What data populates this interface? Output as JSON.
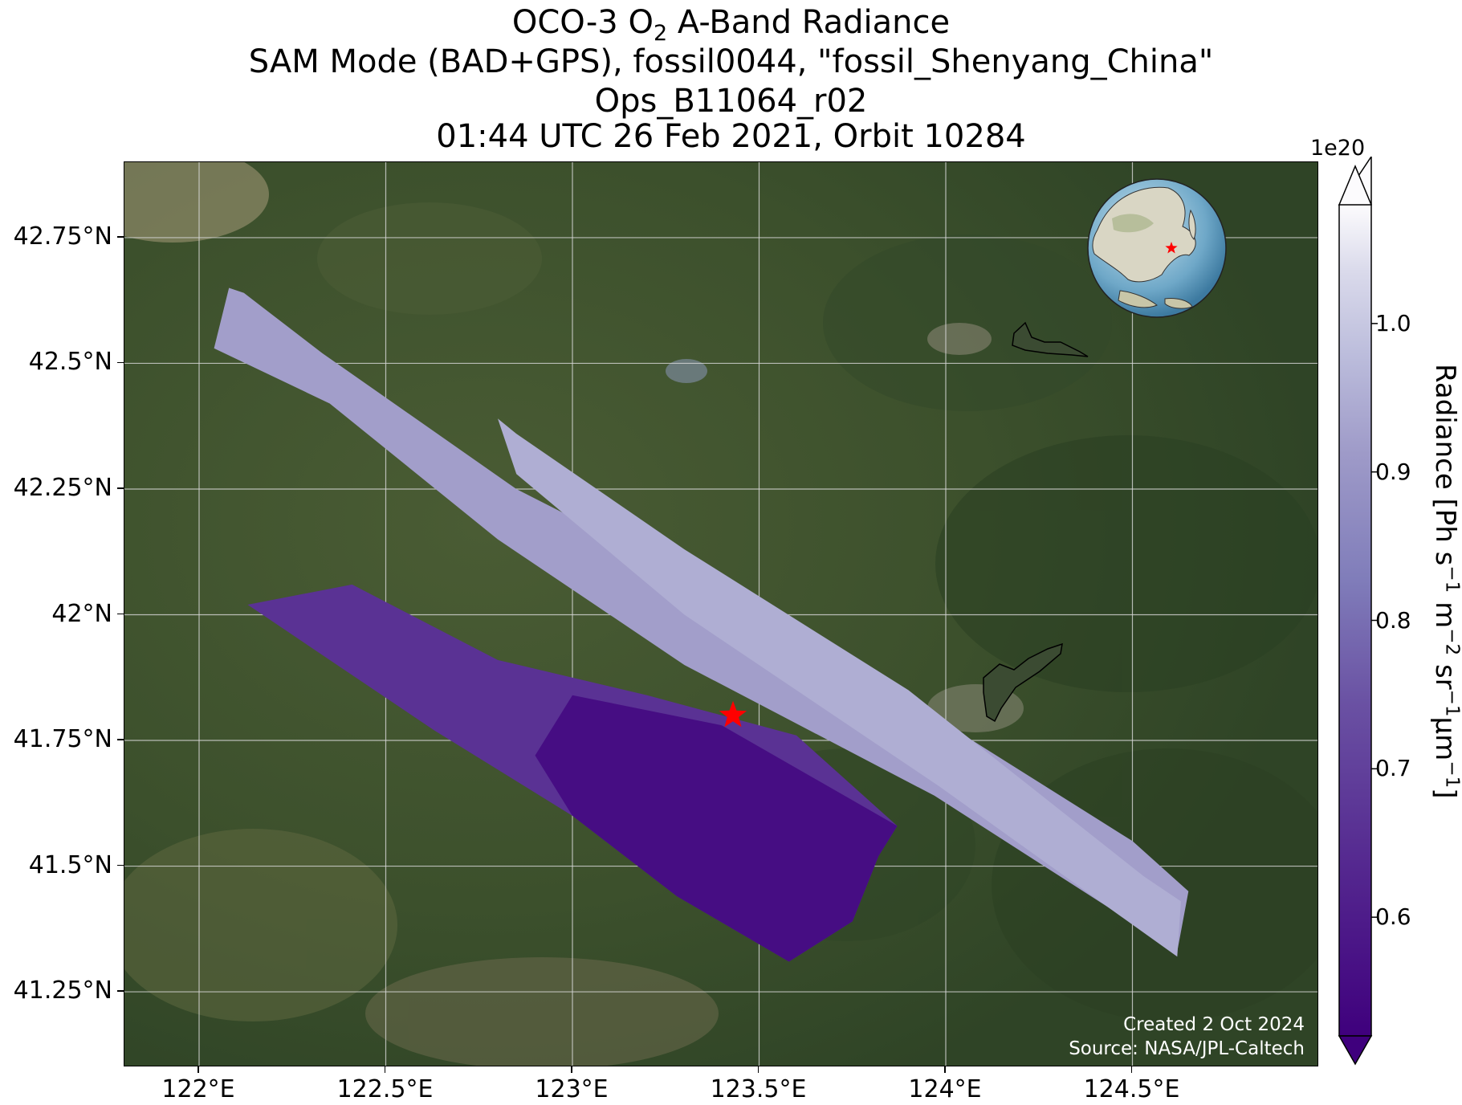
{
  "title": {
    "line1_prefix": "OCO-3 O",
    "line1_sub": "2",
    "line1_suffix": " A-Band Radiance",
    "line2": "SAM Mode (BAD+GPS), fossil0044, \"fossil_Shenyang_China\"",
    "line3": "Ops_B11064_r02",
    "line4": "01:44 UTC 26 Feb 2021, Orbit 10284"
  },
  "map": {
    "lon_range": [
      121.8,
      125.0
    ],
    "lat_range": [
      41.1,
      42.9
    ],
    "x_ticks": [
      {
        "value": 122.0,
        "label": "122°E"
      },
      {
        "value": 122.5,
        "label": "122.5°E"
      },
      {
        "value": 123.0,
        "label": "123°E"
      },
      {
        "value": 123.5,
        "label": "123.5°E"
      },
      {
        "value": 124.0,
        "label": "124°E"
      },
      {
        "value": 124.5,
        "label": "124.5°E"
      }
    ],
    "y_ticks": [
      {
        "value": 42.75,
        "label": "42.75°N"
      },
      {
        "value": 42.5,
        "label": "42.5°N"
      },
      {
        "value": 42.25,
        "label": "42.25°N"
      },
      {
        "value": 42.0,
        "label": "42°N"
      },
      {
        "value": 41.75,
        "label": "41.75°N"
      },
      {
        "value": 41.5,
        "label": "41.5°N"
      },
      {
        "value": 41.25,
        "label": "41.25°N"
      }
    ],
    "grid": true,
    "target": {
      "name": "fossil_Shenyang_China",
      "lon": 123.43,
      "lat": 41.8,
      "marker": "red-star",
      "color": "#ff0000"
    },
    "basemap": "satellite-imagery",
    "credit_line1": "Created 2 Oct 2024",
    "credit_line2": "Source: NASA/JPL-Caltech"
  },
  "chart_data": {
    "type": "heatmap",
    "variable": "O2 A-Band Radiance",
    "units": "Ph s^-1 m^-2 sr^-1 µm^-1",
    "scale_factor": "1e20",
    "colormap": "Purples_r",
    "color_range": [
      0.52,
      1.08
    ],
    "swaths": [
      {
        "lon": [
          122.08,
          122.12,
          122.33,
          122.85,
          123.3,
          123.9,
          124.5,
          124.65,
          124.62,
          123.97,
          123.3,
          122.8,
          122.35,
          122.04
        ],
        "lat": [
          42.65,
          42.64,
          42.52,
          42.25,
          42.08,
          41.83,
          41.55,
          41.45,
          41.33,
          41.64,
          41.9,
          42.15,
          42.42,
          42.53
        ],
        "mean_value": 0.92
      },
      {
        "lon": [
          122.8,
          122.85,
          123.3,
          123.9,
          124.53,
          124.63,
          124.62,
          123.98,
          123.3,
          122.85
        ],
        "lat": [
          42.39,
          42.36,
          42.13,
          41.85,
          41.48,
          41.43,
          41.32,
          41.66,
          42.0,
          42.28
        ],
        "mean_value": 0.95
      },
      {
        "lon": [
          122.13,
          122.41,
          122.8,
          123.2,
          123.6,
          123.87,
          123.82,
          123.75,
          123.58,
          123.28,
          123.0,
          122.63,
          122.35,
          122.17
        ],
        "lat": [
          42.02,
          42.06,
          41.91,
          41.84,
          41.76,
          41.58,
          41.52,
          41.39,
          41.31,
          41.44,
          41.6,
          41.77,
          41.91,
          42.0
        ],
        "mean_value": 0.66
      }
    ],
    "colorbar": {
      "label_prefix": "Radiance [Ph s",
      "label_sup1": "−1",
      "label_mid1": " m",
      "label_sup2": "−2",
      "label_mid2": " sr",
      "label_sup3": "−1",
      "label_mid3": "µm",
      "label_sup4": "−1",
      "label_suffix": "]",
      "exponent_label": "1e20",
      "ticks": [
        {
          "value": 0.6,
          "label": "0.6"
        },
        {
          "value": 0.7,
          "label": "0.7"
        },
        {
          "value": 0.8,
          "label": "0.8"
        },
        {
          "value": 0.9,
          "label": "0.9"
        },
        {
          "value": 1.0,
          "label": "1.0"
        }
      ],
      "extend": "both"
    },
    "inset": {
      "type": "globe",
      "marker": "red-star",
      "marker_color": "#ff0000"
    }
  }
}
